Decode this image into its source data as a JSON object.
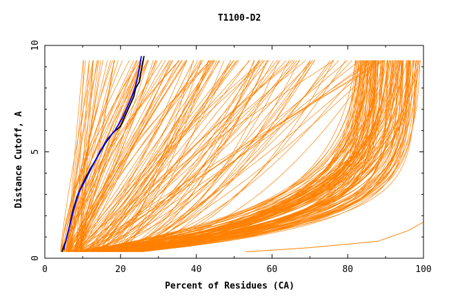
{
  "chart_data": {
    "type": "line",
    "title": "T1100-D2",
    "xlabel": "Percent of Residues (CA)",
    "ylabel": "Distance Cutoff, A",
    "xlim": [
      0,
      100
    ],
    "ylim": [
      0,
      10
    ],
    "x_ticks": [
      0,
      20,
      40,
      60,
      80,
      100
    ],
    "y_ticks": [
      0,
      5,
      10
    ],
    "x_tick_labels": [
      "0",
      "20",
      "40",
      "60",
      "80",
      "100"
    ],
    "y_tick_labels": [
      "0",
      "5",
      "10"
    ],
    "grid": false,
    "legend": "none",
    "colors": {
      "models": "#ff8000",
      "highlight_black": "#000000",
      "highlight_blue": "#0000ff",
      "axes": "#000000"
    },
    "series": [
      {
        "color": "#000000",
        "points": [
          [
            4.5,
            0.3
          ],
          [
            5.5,
            0.8
          ],
          [
            6.5,
            1.5
          ],
          [
            7.5,
            2.3
          ],
          [
            8.5,
            2.9
          ],
          [
            10,
            3.5
          ],
          [
            12,
            4.2
          ],
          [
            14,
            4.8
          ],
          [
            16,
            5.4
          ],
          [
            18,
            5.9
          ],
          [
            20,
            6.2
          ],
          [
            21.5,
            6.8
          ],
          [
            22.5,
            7.2
          ],
          [
            23.5,
            7.6
          ],
          [
            24,
            8.0
          ],
          [
            25,
            8.3
          ],
          [
            25.3,
            8.7
          ],
          [
            25.8,
            9.1
          ],
          [
            26.2,
            9.5
          ]
        ]
      },
      {
        "color": "#0000ff",
        "points": [
          [
            5,
            0.4
          ],
          [
            5.8,
            1.0
          ],
          [
            6.8,
            1.7
          ],
          [
            7.8,
            2.4
          ],
          [
            9,
            3.1
          ],
          [
            10.5,
            3.6
          ],
          [
            12.5,
            4.3
          ],
          [
            14.5,
            5.0
          ],
          [
            16.5,
            5.6
          ],
          [
            18.5,
            6.0
          ],
          [
            20.5,
            6.6
          ],
          [
            22,
            7.2
          ],
          [
            23,
            7.6
          ],
          [
            23.8,
            8.0
          ],
          [
            24.5,
            8.5
          ],
          [
            25,
            9.0
          ],
          [
            25.5,
            9.5
          ]
        ]
      },
      {
        "color": "#ff8000",
        "points": [
          [
            53,
            0.3
          ],
          [
            70,
            0.5
          ],
          [
            88,
            0.8
          ],
          [
            96,
            1.3
          ],
          [
            100,
            1.7
          ],
          [
            100,
            5
          ],
          [
            100,
            9.5
          ]
        ]
      }
    ]
  }
}
